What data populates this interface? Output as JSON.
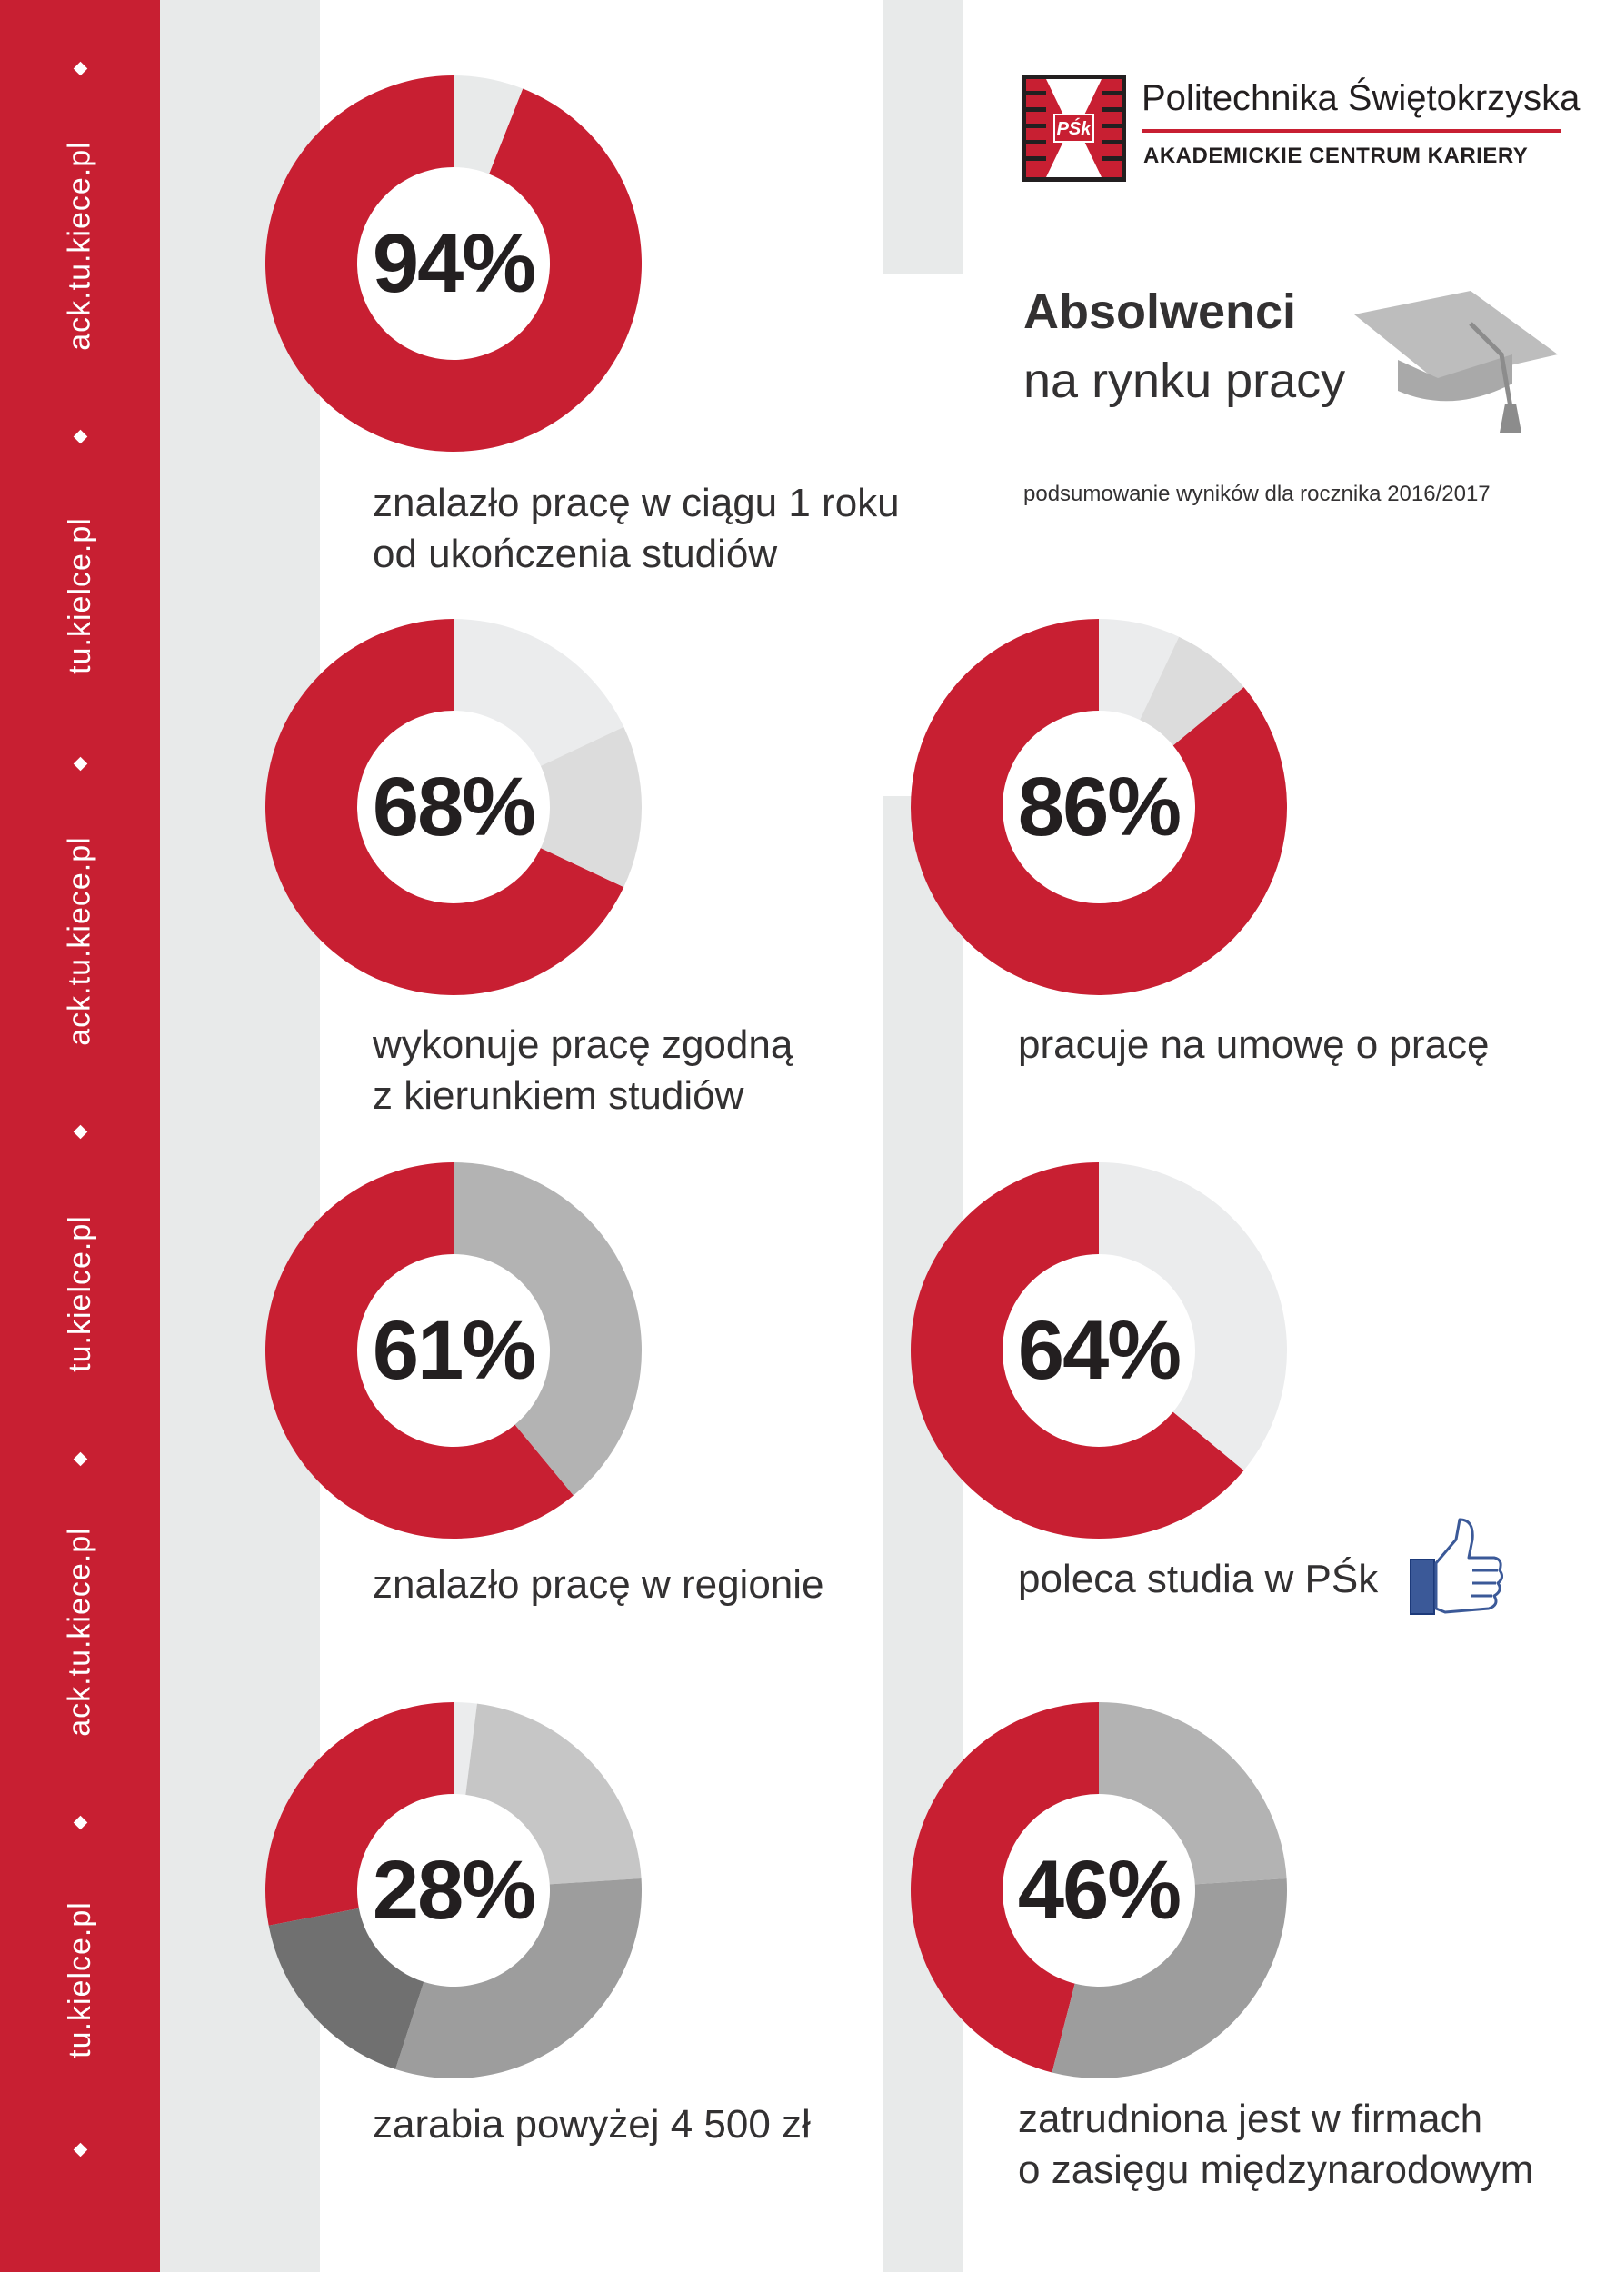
{
  "sidebar": {
    "url_primary": "ack.tu.kiece.pl",
    "url_secondary": "tu.kielce.pl"
  },
  "header": {
    "university": "Politechnika Świętokrzyska",
    "unit": "AKADEMICKIE CENTRUM KARIERY",
    "logo_text": "PŚk"
  },
  "title": {
    "main": "Absolwenci",
    "sub": "na rynku pracy",
    "note": "podsumowanie wyników dla rocznika 2016/2017"
  },
  "colors": {
    "brand_red": "#c81f32",
    "band_gray": "#e8eaea",
    "text_dark": "#231f20"
  },
  "chart_data": [
    {
      "type": "pie",
      "label": "94%",
      "caption": [
        "znalazło pracę w ciągu 1 roku",
        "od ukończenia studiów"
      ],
      "slices": [
        {
          "value": 94,
          "color": "#c81f32"
        },
        {
          "value": 6,
          "color": "#e8eaea"
        }
      ]
    },
    {
      "type": "pie",
      "label": "68%",
      "caption": [
        "wykonuje pracę zgodną",
        "z kierunkiem studiów"
      ],
      "slices": [
        {
          "value": 68,
          "color": "#c81f32"
        },
        {
          "value": 18,
          "color": "#ebeced"
        },
        {
          "value": 14,
          "color": "#dcdcdc"
        }
      ]
    },
    {
      "type": "pie",
      "label": "86%",
      "caption": [
        "pracuje na umowę o pracę"
      ],
      "slices": [
        {
          "value": 86,
          "color": "#c81f32"
        },
        {
          "value": 7,
          "color": "#ebeced"
        },
        {
          "value": 7,
          "color": "#dcdcdc"
        }
      ]
    },
    {
      "type": "pie",
      "label": "61%",
      "caption": [
        "znalazło pracę w regionie"
      ],
      "slices": [
        {
          "value": 61,
          "color": "#c81f32"
        },
        {
          "value": 39,
          "color": "#b3b3b3"
        }
      ]
    },
    {
      "type": "pie",
      "label": "64%",
      "caption": [
        "poleca studia w PŚk"
      ],
      "slices": [
        {
          "value": 64,
          "color": "#c81f32"
        },
        {
          "value": 36,
          "color": "#ebeced"
        }
      ]
    },
    {
      "type": "pie",
      "label": "28%",
      "caption": [
        "zarabia powyżej 4 500 zł"
      ],
      "slices": [
        {
          "value": 28,
          "color": "#c81f32"
        },
        {
          "value": 2,
          "color": "#ebeced"
        },
        {
          "value": 22,
          "color": "#c6c6c6"
        },
        {
          "value": 31,
          "color": "#9d9d9d"
        },
        {
          "value": 17,
          "color": "#707070"
        }
      ]
    },
    {
      "type": "pie",
      "label": "46%",
      "caption": [
        "zatrudniona jest w firmach",
        "o zasięgu międzynarodowym"
      ],
      "slices": [
        {
          "value": 46,
          "color": "#c81f32"
        },
        {
          "value": 24,
          "color": "#b3b3b3"
        },
        {
          "value": 30,
          "color": "#9d9d9d"
        }
      ]
    }
  ]
}
